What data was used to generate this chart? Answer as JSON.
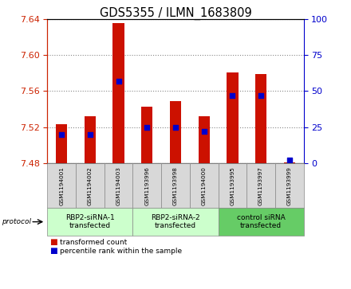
{
  "title": "GDS5355 / ILMN_1683809",
  "samples": [
    "GSM1194001",
    "GSM1194002",
    "GSM1194003",
    "GSM1193996",
    "GSM1193998",
    "GSM1194000",
    "GSM1193995",
    "GSM1193997",
    "GSM1193999"
  ],
  "transformed_count_bottom": [
    7.48,
    7.48,
    7.48,
    7.48,
    7.48,
    7.48,
    7.48,
    7.48,
    7.48
  ],
  "transformed_count_top": [
    7.523,
    7.532,
    7.635,
    7.543,
    7.549,
    7.532,
    7.581,
    7.579,
    7.481
  ],
  "percentile_rank": [
    20,
    20,
    57,
    25,
    25,
    22,
    47,
    47,
    2
  ],
  "ylim_left": [
    7.48,
    7.64
  ],
  "ylim_right": [
    0,
    100
  ],
  "yticks_left": [
    7.48,
    7.52,
    7.56,
    7.6,
    7.64
  ],
  "yticks_right": [
    0,
    25,
    50,
    75,
    100
  ],
  "groups": [
    {
      "label": "RBP2-siRNA-1\ntransfected",
      "start": 0,
      "end": 3,
      "color": "#ccffcc"
    },
    {
      "label": "RBP2-siRNA-2\ntransfected",
      "start": 3,
      "end": 6,
      "color": "#ccffcc"
    },
    {
      "label": "control siRNA\ntransfected",
      "start": 6,
      "end": 9,
      "color": "#66cc66"
    }
  ],
  "bar_color": "#cc1100",
  "percentile_color": "#0000cc",
  "bar_width": 0.4,
  "left_axis_color": "#cc2200",
  "right_axis_color": "#0000cc",
  "grid_color": "#888888",
  "legend_red_label": "transformed count",
  "legend_blue_label": "percentile rank within the sample"
}
